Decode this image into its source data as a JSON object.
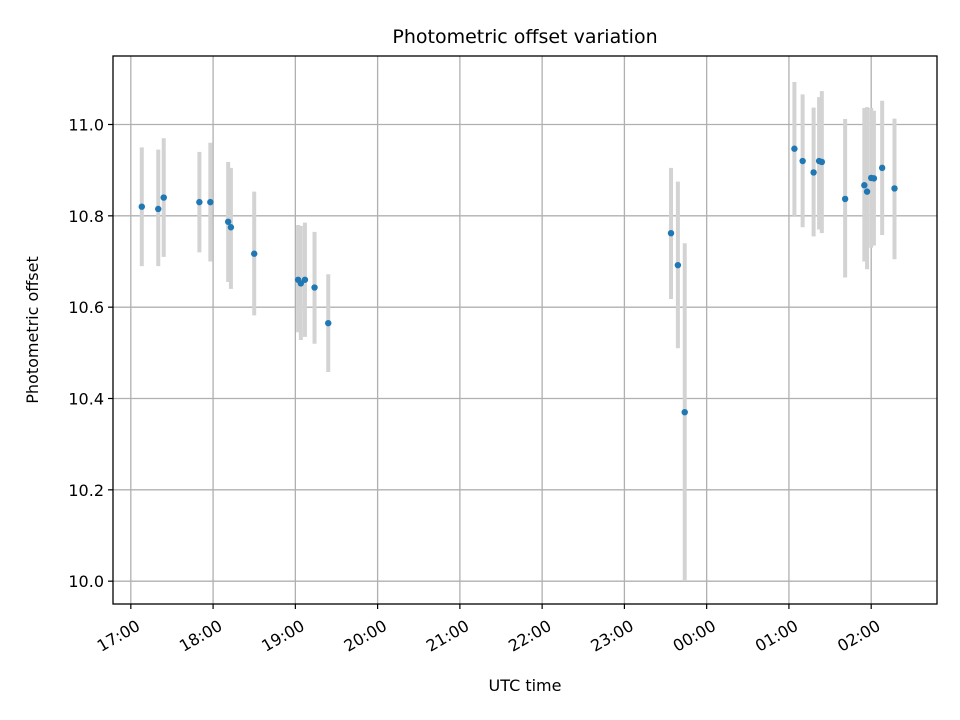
{
  "chart_data": {
    "type": "scatter",
    "title": "Photometric offset variation",
    "xlabel": "UTC time",
    "ylabel": "Photometric offset",
    "x_is_time": true,
    "x_unit": "hours (UTC, continuing past midnight)",
    "xlim": [
      "16:47",
      "02:48"
    ],
    "ylim": [
      9.95,
      11.15
    ],
    "x_ticks": [
      "17:00",
      "18:00",
      "19:00",
      "20:00",
      "21:00",
      "22:00",
      "23:00",
      "00:00",
      "01:00",
      "02:00"
    ],
    "y_ticks": [
      "10.0",
      "10.2",
      "10.4",
      "10.6",
      "10.8",
      "11.0"
    ],
    "grid": true,
    "series": [
      {
        "color": "#1f77b4",
        "errorbar_color": "#d3d3d3",
        "points": [
          {
            "x": "17:08",
            "y": 10.82,
            "ylo": 10.69,
            "yhi": 10.95
          },
          {
            "x": "17:20",
            "y": 10.815,
            "ylo": 10.69,
            "yhi": 10.945
          },
          {
            "x": "17:24",
            "y": 10.84,
            "ylo": 10.71,
            "yhi": 10.97
          },
          {
            "x": "17:50",
            "y": 10.83,
            "ylo": 10.72,
            "yhi": 10.94
          },
          {
            "x": "17:58",
            "y": 10.83,
            "ylo": 10.7,
            "yhi": 10.96
          },
          {
            "x": "18:11",
            "y": 10.787,
            "ylo": 10.655,
            "yhi": 10.918
          },
          {
            "x": "18:13",
            "y": 10.775,
            "ylo": 10.64,
            "yhi": 10.905
          },
          {
            "x": "18:30",
            "y": 10.717,
            "ylo": 10.582,
            "yhi": 10.853
          },
          {
            "x": "19:02",
            "y": 10.66,
            "ylo": 10.545,
            "yhi": 10.78
          },
          {
            "x": "19:04",
            "y": 10.652,
            "ylo": 10.528,
            "yhi": 10.778
          },
          {
            "x": "19:07",
            "y": 10.66,
            "ylo": 10.535,
            "yhi": 10.785
          },
          {
            "x": "19:14",
            "y": 10.643,
            "ylo": 10.52,
            "yhi": 10.765
          },
          {
            "x": "19:24",
            "y": 10.565,
            "ylo": 10.458,
            "yhi": 10.672
          },
          {
            "x": "23:34",
            "y": 10.762,
            "ylo": 10.618,
            "yhi": 10.905
          },
          {
            "x": "23:39",
            "y": 10.692,
            "ylo": 10.51,
            "yhi": 10.875
          },
          {
            "x": "23:44",
            "y": 10.37,
            "ylo": 10.0,
            "yhi": 10.74
          },
          {
            "x": "01:04",
            "y": 10.947,
            "ylo": 10.8,
            "yhi": 11.093
          },
          {
            "x": "01:10",
            "y": 10.92,
            "ylo": 10.775,
            "yhi": 11.066
          },
          {
            "x": "01:18",
            "y": 10.895,
            "ylo": 10.755,
            "yhi": 11.037
          },
          {
            "x": "01:22",
            "y": 10.92,
            "ylo": 10.77,
            "yhi": 11.06
          },
          {
            "x": "01:24",
            "y": 10.918,
            "ylo": 10.762,
            "yhi": 11.073
          },
          {
            "x": "01:41",
            "y": 10.837,
            "ylo": 10.665,
            "yhi": 11.012
          },
          {
            "x": "01:55",
            "y": 10.867,
            "ylo": 10.7,
            "yhi": 11.036
          },
          {
            "x": "01:57",
            "y": 10.853,
            "ylo": 10.683,
            "yhi": 11.038
          },
          {
            "x": "02:00",
            "y": 10.883,
            "ylo": 10.73,
            "yhi": 11.036
          },
          {
            "x": "02:02",
            "y": 10.882,
            "ylo": 10.735,
            "yhi": 11.03
          },
          {
            "x": "02:08",
            "y": 10.905,
            "ylo": 10.758,
            "yhi": 11.052
          },
          {
            "x": "02:17",
            "y": 10.86,
            "ylo": 10.705,
            "yhi": 11.013
          }
        ]
      }
    ]
  }
}
